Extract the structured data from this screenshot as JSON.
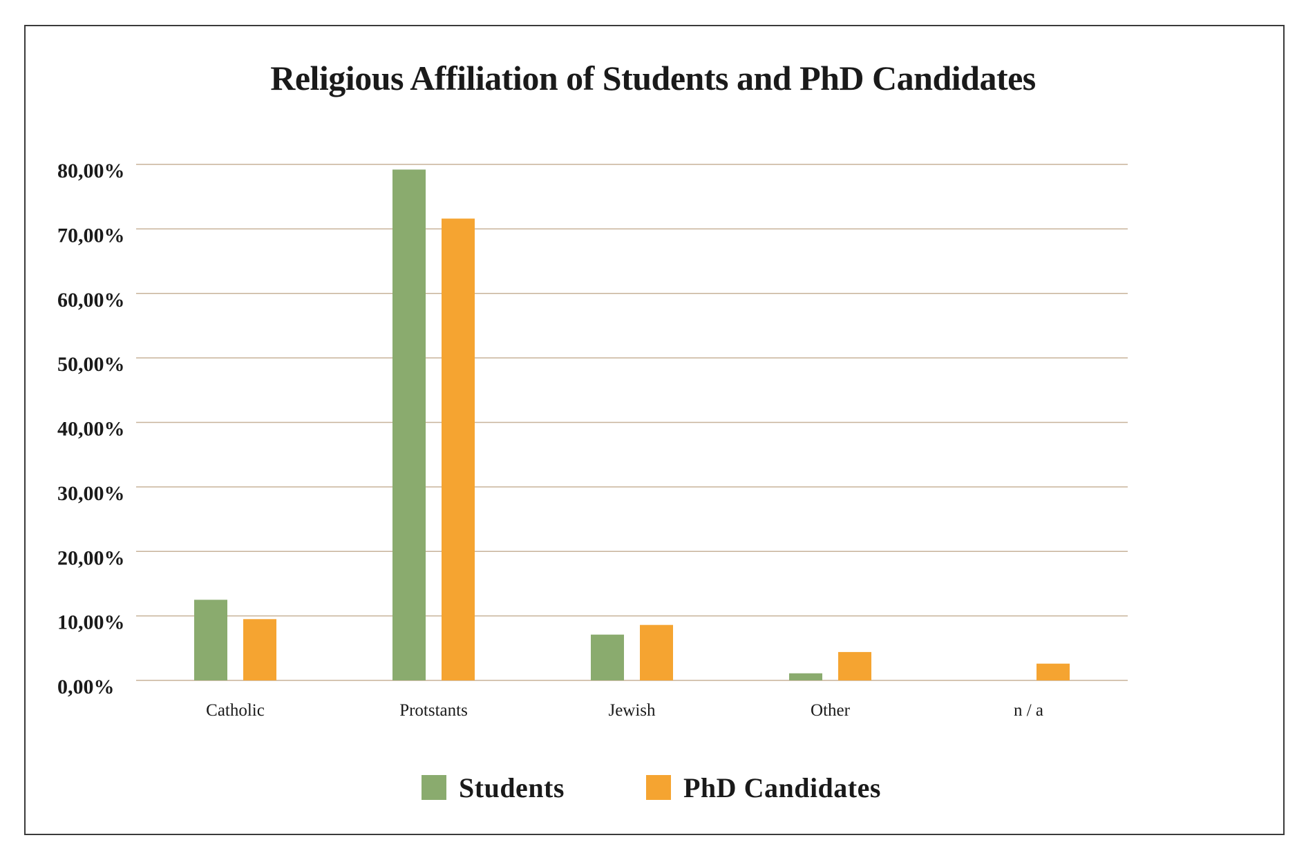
{
  "chart_data": {
    "type": "bar",
    "title": "Religious Affiliation of Students and PhD Candidates",
    "categories": [
      "Catholic",
      "Protstants",
      "Jewish",
      "Other",
      "n / a"
    ],
    "series": [
      {
        "name": "Students",
        "color": "#8aab6e",
        "values": [
          12.5,
          79.2,
          7.1,
          1.1,
          0
        ]
      },
      {
        "name": "PhD Candidates",
        "color": "#f5a431",
        "values": [
          9.5,
          71.6,
          8.6,
          4.4,
          2.6
        ]
      }
    ],
    "ylim": [
      0,
      80
    ],
    "yticks": [
      0,
      10,
      20,
      30,
      40,
      50,
      60,
      70,
      80
    ],
    "ytick_labels": [
      "0,00%",
      "10,00%",
      "20,00%",
      "30,00%",
      "40,00%",
      "50,00%",
      "60,00%",
      "70,00%",
      "80,00%"
    ],
    "grid": true,
    "gridline_color": "#c7b299",
    "legend_position": "bottom"
  }
}
